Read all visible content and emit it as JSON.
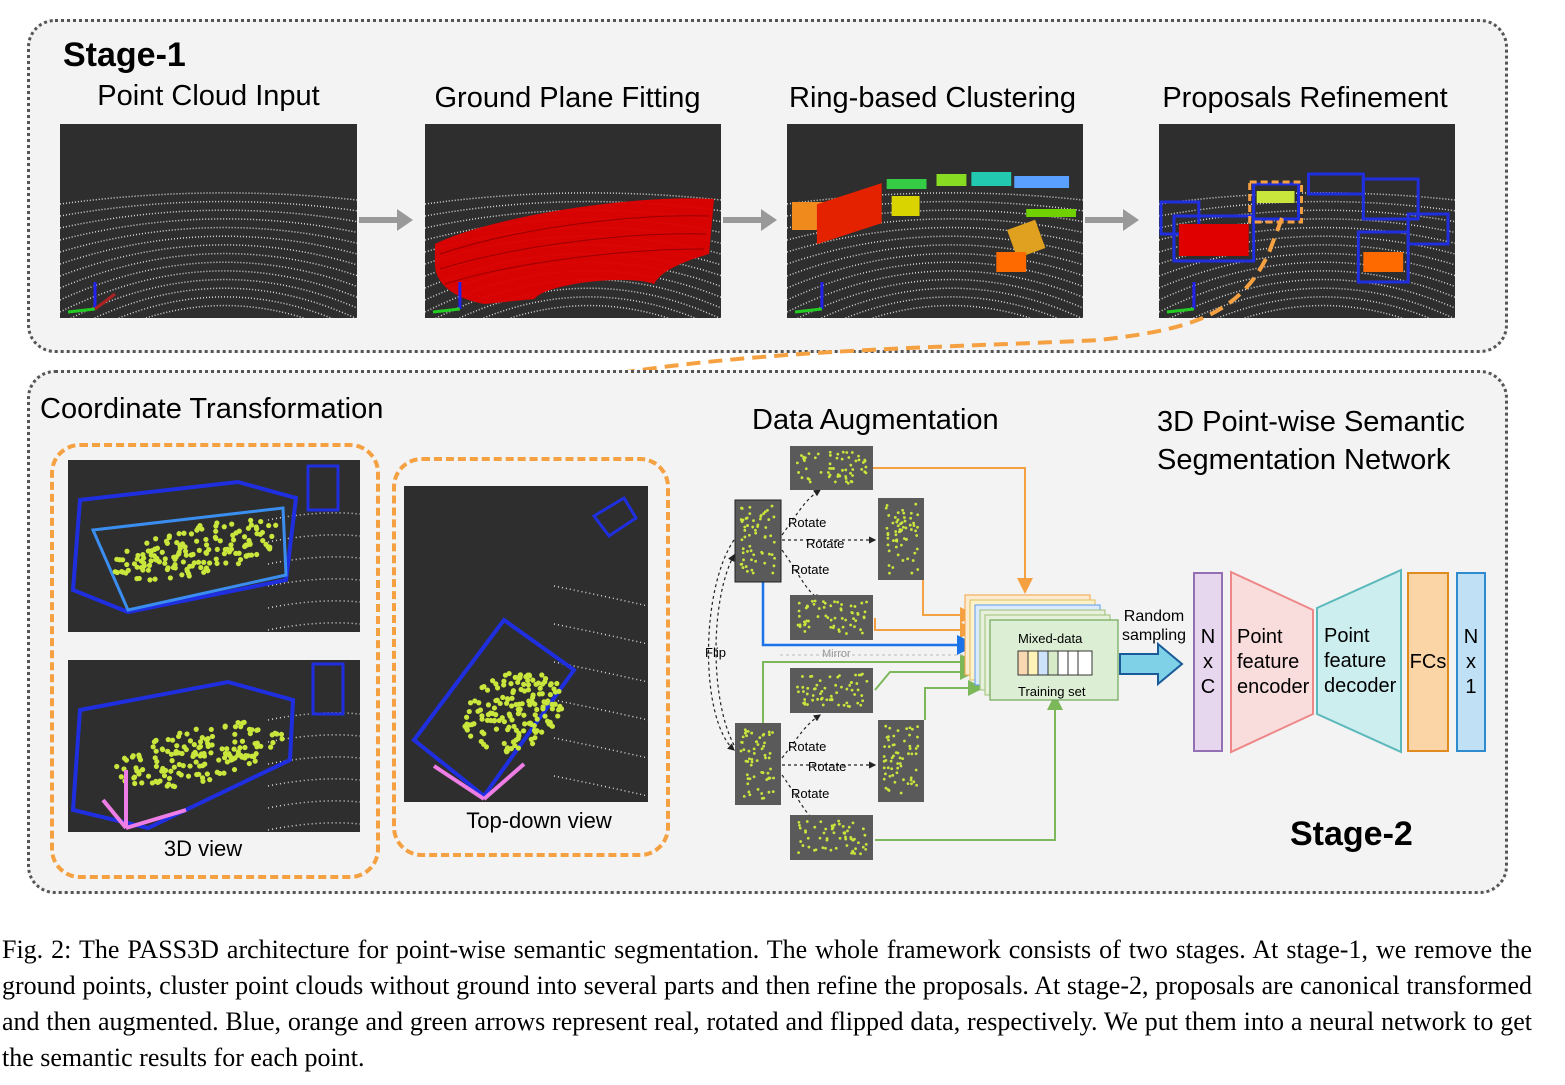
{
  "stage1": {
    "title": "Stage-1",
    "steps": [
      {
        "title": "Point Cloud Input"
      },
      {
        "title": "Ground Plane Fitting"
      },
      {
        "title": "Ring-based Clustering"
      },
      {
        "title": "Proposals Refinement"
      }
    ]
  },
  "stage2": {
    "title": "Stage-2",
    "coord_transform": {
      "title": "Coordinate Transformation",
      "view_3d_label": "3D view",
      "view_top_label": "Top-down view"
    },
    "augmentation": {
      "title": "Data Augmentation",
      "rotate": "Rotate",
      "flip": "Flip",
      "mirror": "Mirror",
      "training_set_top": "Mixed-data",
      "training_set_bottom": "Training set",
      "random_sampling": "Random\nsampling"
    },
    "network": {
      "title_line1": "3D Point-wise Semantic",
      "title_line2": "Segmentation Network",
      "blocks": [
        {
          "text": "N\nx\nC"
        },
        {
          "text": "Point\nfeature\nencoder"
        },
        {
          "text": "Point\nfeature\ndecoder"
        },
        {
          "text": "FCs"
        },
        {
          "text": "N\nx\n1"
        }
      ]
    }
  },
  "caption": "Fig. 2: The PASS3D architecture for point-wise semantic segmentation. The whole framework consists of two stages. At stage-1, we remove the ground points, cluster point clouds without ground into several parts and then refine the proposals. At stage-2, proposals are canonical transformed and then augmented. Blue, orange and green arrows represent real, rotated and flipped data, respectively. We put them into a neural network to get the semantic results for each point.",
  "colors": {
    "real": "#1a73e8",
    "rotated": "#f5a142",
    "flipped": "#7cb85a",
    "ground": "#e00000",
    "box_blue": "#1f2fe0",
    "points_yellow": "#c8e63c",
    "highlight_pink": "#ee7de6"
  }
}
